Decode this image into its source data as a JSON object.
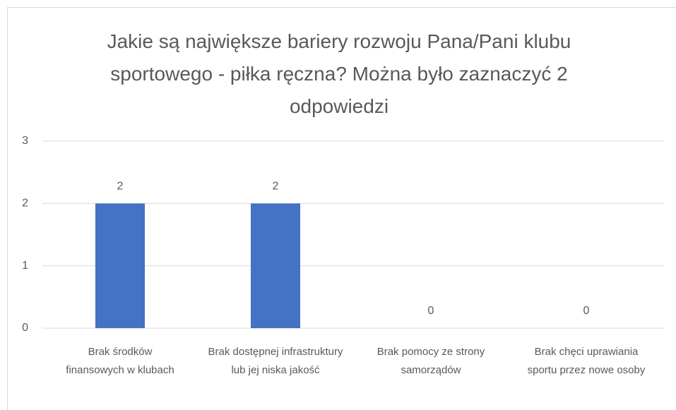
{
  "chart_data": {
    "type": "bar",
    "title": "Jakie są największe bariery rozwoju Pana/Pani klubu sportowego - piłka ręczna? Można było zaznaczyć 2 odpowiedzi",
    "categories": [
      "Brak środków finansowych w klubach",
      "Brak dostępnej infrastruktury lub jej niska jakość",
      "Brak pomocy ze strony samorządów",
      "Brak chęci uprawiania sportu przez nowe osoby"
    ],
    "values": [
      2,
      2,
      0,
      0
    ],
    "color": "#4472c4",
    "ylim": [
      0,
      3
    ],
    "yticks": [
      0,
      1,
      2,
      3
    ],
    "grid": true
  }
}
